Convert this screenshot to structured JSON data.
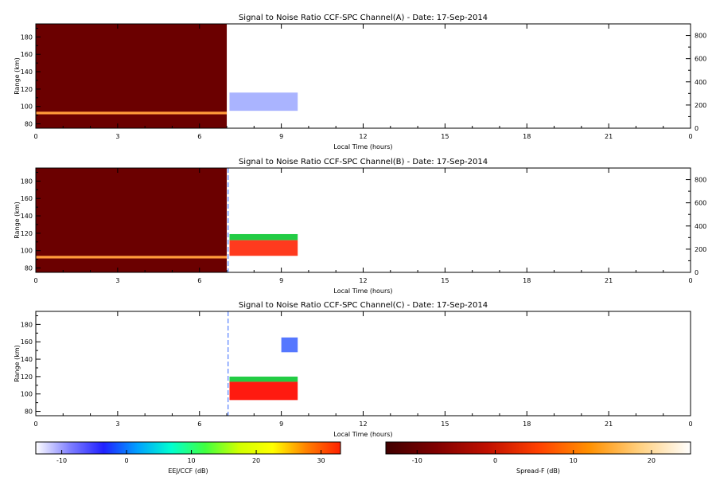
{
  "chart_data": {
    "type": "heatmap",
    "panels": [
      {
        "title": "Signal to Noise Ratio CCF-SPC Channel(A) - Date: 17-Sep-2014",
        "xlabel": "Local Time (hours)",
        "ylabel": "Range (km)",
        "x_ticks": [
          "0",
          "3",
          "6",
          "9",
          "12",
          "15",
          "18",
          "21",
          "0"
        ],
        "y_ticks": [
          80,
          100,
          120,
          140,
          160,
          180
        ],
        "y_right_ticks": [
          0,
          200,
          400,
          600,
          800
        ],
        "xlim": [
          0,
          24
        ],
        "ylim": [
          75,
          195
        ],
        "y_right_lim": [
          0,
          900
        ],
        "regions": [
          {
            "type": "spread-f-block",
            "x": [
              0,
              7.0
            ],
            "y": [
              75,
              195
            ],
            "color": "#6b0000"
          },
          {
            "type": "layer",
            "x": [
              0,
              7.0
            ],
            "y": [
              91,
              94
            ],
            "color": "#ff9a3a"
          },
          {
            "type": "eej-block",
            "x": [
              7.1,
              9.6
            ],
            "y": [
              95,
              116
            ],
            "color": "#aab4ff"
          }
        ]
      },
      {
        "title": "Signal to Noise Ratio CCF-SPC Channel(B) - Date: 17-Sep-2014",
        "xlabel": "Local Time (hours)",
        "ylabel": "Range (km)",
        "x_ticks": [
          "0",
          "3",
          "6",
          "9",
          "12",
          "15",
          "18",
          "21",
          "0"
        ],
        "y_ticks": [
          80,
          100,
          120,
          140,
          160,
          180
        ],
        "y_right_ticks": [
          0,
          200,
          400,
          600,
          800
        ],
        "xlim": [
          0,
          24
        ],
        "ylim": [
          75,
          195
        ],
        "y_right_lim": [
          0,
          900
        ],
        "regions": [
          {
            "type": "spread-f-block",
            "x": [
              0,
              7.0
            ],
            "y": [
              75,
              195
            ],
            "color": "#6b0000"
          },
          {
            "type": "layer",
            "x": [
              0,
              7.0
            ],
            "y": [
              91,
              94
            ],
            "color": "#ff9a3a"
          },
          {
            "type": "eej-edge",
            "x": [
              7.1,
              9.6
            ],
            "y": [
              112,
              119
            ],
            "color": "#22cc44"
          },
          {
            "type": "eej-core",
            "x": [
              7.1,
              9.6
            ],
            "y": [
              94,
              112
            ],
            "color": "#ff3a1e"
          }
        ]
      },
      {
        "title": "Signal to Noise Ratio CCF-SPC Channel(C) - Date: 17-Sep-2014",
        "xlabel": "Local Time (hours)",
        "ylabel": "Range (km)",
        "x_ticks": [
          "0",
          "3",
          "6",
          "9",
          "12",
          "15",
          "18",
          "21",
          "0"
        ],
        "y_ticks": [
          80,
          100,
          120,
          140,
          160,
          180
        ],
        "xlim": [
          0,
          24
        ],
        "ylim": [
          75,
          195
        ],
        "regions": [
          {
            "type": "eej-edge",
            "x": [
              7.1,
              9.6
            ],
            "y": [
              114,
              120
            ],
            "color": "#22cc44"
          },
          {
            "type": "eej-core",
            "x": [
              7.1,
              9.6
            ],
            "y": [
              93,
              114
            ],
            "color": "#ff1a10"
          },
          {
            "type": "scatter-patch",
            "x": [
              9.0,
              9.6
            ],
            "y": [
              148,
              165
            ],
            "color": "#5577ff"
          }
        ]
      }
    ],
    "colorbars": [
      {
        "label": "EEJ/CCF (dB)",
        "range": [
          -14,
          33
        ],
        "ticks": [
          -10,
          0,
          10,
          20,
          30
        ],
        "colors": [
          "#ffffff",
          "#8080ff",
          "#2020ff",
          "#00a0ff",
          "#00ffd0",
          "#40ff40",
          "#d0ff00",
          "#ffff00",
          "#ff8000",
          "#ff2000"
        ]
      },
      {
        "label": "Spread-F (dB)",
        "range": [
          -14,
          25
        ],
        "ticks": [
          -10,
          0,
          10,
          20
        ],
        "colors": [
          "#400000",
          "#800000",
          "#c01000",
          "#ff4000",
          "#ff9000",
          "#ffd080",
          "#ffffff"
        ]
      }
    ]
  }
}
